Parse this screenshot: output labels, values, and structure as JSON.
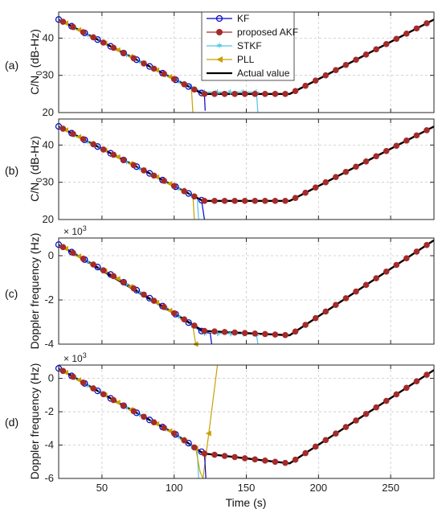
{
  "chart_data": [
    {
      "type": "line",
      "panel_label": "(a)",
      "ylabel": "C/N",
      "ylabel_sub": "0",
      "ylabel_tail": " (dB-Hz)",
      "ylim": [
        20,
        47
      ],
      "yticks": [
        20,
        30,
        40
      ],
      "ytick_labels": [
        "20",
        "30",
        "40"
      ],
      "xlim": [
        20,
        280
      ],
      "grid": true,
      "legend": {
        "position": "top-center",
        "entries": [
          {
            "name": "KF",
            "color": "#0000cc",
            "marker": "circle-open"
          },
          {
            "name": "proposed AKF",
            "color": "#a52a2a",
            "marker": "circle-filled"
          },
          {
            "name": "STKF",
            "color": "#4fc3e8",
            "marker": "star"
          },
          {
            "name": "PLL",
            "color": "#c9a000",
            "marker": "triangle-left"
          },
          {
            "name": "Actual value",
            "color": "#000000",
            "marker": "none"
          }
        ]
      },
      "series": [
        {
          "name": "Actual value",
          "x": [
            20,
            120,
            180,
            280
          ],
          "y": [
            45,
            25,
            25,
            45
          ]
        },
        {
          "name": "KF",
          "x": [
            20,
            50,
            80,
            105,
            118,
            121,
            121.5
          ],
          "y": [
            45,
            39,
            33,
            28,
            25.4,
            25,
            20.5
          ]
        },
        {
          "name": "proposed AKF",
          "x": [
            20,
            60,
            100,
            120,
            150,
            180,
            230,
            280
          ],
          "y": [
            45,
            37,
            29,
            25,
            25,
            25,
            35,
            45
          ]
        },
        {
          "name": "STKF",
          "x": [
            20,
            60,
            100,
            120,
            157,
            158
          ],
          "y": [
            45,
            37,
            29,
            25.5,
            25.5,
            20
          ]
        },
        {
          "name": "PLL",
          "x": [
            20,
            60,
            100,
            112,
            113
          ],
          "y": [
            45,
            37,
            29,
            26.5,
            20
          ]
        }
      ]
    },
    {
      "type": "line",
      "panel_label": "(b)",
      "ylabel": "C/N",
      "ylabel_sub": "0",
      "ylabel_tail": " (dB-Hz)",
      "ylim": [
        20,
        47
      ],
      "yticks": [
        20,
        30,
        40
      ],
      "ytick_labels": [
        "20",
        "30",
        "40"
      ],
      "xlim": [
        20,
        280
      ],
      "grid": true,
      "series": [
        {
          "name": "Actual value",
          "x": [
            20,
            120,
            180,
            280
          ],
          "y": [
            45,
            25,
            25,
            45
          ]
        },
        {
          "name": "KF",
          "x": [
            20,
            60,
            100,
            119,
            121
          ],
          "y": [
            45,
            37,
            29,
            25.2,
            20
          ]
        },
        {
          "name": "proposed AKF",
          "x": [
            20,
            60,
            100,
            120,
            150,
            180,
            230,
            280
          ],
          "y": [
            45,
            37,
            29,
            25,
            25,
            25,
            35,
            45
          ]
        },
        {
          "name": "STKF",
          "x": [
            20,
            60,
            100,
            116,
            117
          ],
          "y": [
            45,
            37,
            29,
            25.8,
            20
          ]
        },
        {
          "name": "PLL",
          "x": [
            20,
            60,
            100,
            113,
            114
          ],
          "y": [
            45,
            37,
            29,
            26.5,
            20
          ]
        }
      ]
    },
    {
      "type": "line",
      "panel_label": "(c)",
      "ylabel": "Doppler frequency (Hz)",
      "exponent_base": "× 10",
      "exponent_power": "3",
      "ylim": [
        -4,
        0.8
      ],
      "yticks": [
        -4,
        -2,
        0
      ],
      "ytick_labels": [
        "-4",
        "-2",
        "0"
      ],
      "xlim": [
        20,
        280
      ],
      "grid": true,
      "series": [
        {
          "name": "Actual value",
          "x": [
            20,
            120,
            180,
            280
          ],
          "y": [
            0.5,
            -3.4,
            -3.6,
            0.7
          ]
        },
        {
          "name": "KF",
          "x": [
            20,
            60,
            100,
            120,
            125,
            126
          ],
          "y": [
            0.5,
            -1.0,
            -2.6,
            -3.45,
            -3.5,
            -4
          ]
        },
        {
          "name": "proposed AKF",
          "x": [
            20,
            60,
            100,
            120,
            150,
            180,
            230,
            280
          ],
          "y": [
            0.5,
            -1.0,
            -2.6,
            -3.4,
            -3.5,
            -3.6,
            -1.45,
            0.7
          ]
        },
        {
          "name": "STKF",
          "x": [
            20,
            60,
            100,
            120,
            157,
            158
          ],
          "y": [
            0.5,
            -1.0,
            -2.6,
            -3.5,
            -3.55,
            -4
          ]
        },
        {
          "name": "PLL",
          "x": [
            20,
            60,
            100,
            113,
            115
          ],
          "y": [
            0.5,
            -1.0,
            -2.6,
            -3.2,
            -4
          ]
        }
      ]
    },
    {
      "type": "line",
      "panel_label": "(d)",
      "ylabel": "Doppler frequency (Hz)",
      "exponent_base": "× 10",
      "exponent_power": "3",
      "xlabel": "Time (s)",
      "ylim": [
        -6,
        0.8
      ],
      "yticks": [
        -6,
        -4,
        -2,
        0
      ],
      "ytick_labels": [
        "-6",
        "-4",
        "-2",
        "0"
      ],
      "xlim": [
        20,
        280
      ],
      "xticks": [
        50,
        100,
        150,
        200,
        250
      ],
      "xtick_labels": [
        "50",
        "100",
        "150",
        "200",
        "250"
      ],
      "grid": true,
      "series": [
        {
          "name": "Actual value",
          "x": [
            20,
            60,
            100,
            120,
            150,
            180,
            230,
            280
          ],
          "y": [
            0.6,
            -1.4,
            -3.3,
            -4.5,
            -4.8,
            -5.1,
            -2.3,
            0.5
          ]
        },
        {
          "name": "KF",
          "x": [
            20,
            60,
            100,
            118,
            121,
            122
          ],
          "y": [
            0.6,
            -1.4,
            -3.3,
            -4.35,
            -4.5,
            -6
          ]
        },
        {
          "name": "proposed AKF",
          "x": [
            20,
            60,
            100,
            120,
            150,
            180,
            230,
            280
          ],
          "y": [
            0.6,
            -1.4,
            -3.3,
            -4.5,
            -4.8,
            -5.1,
            -2.3,
            0.5
          ]
        },
        {
          "name": "STKF",
          "x": [
            20,
            60,
            100,
            116,
            117
          ],
          "y": [
            0.6,
            -1.4,
            -3.3,
            -4.3,
            -6
          ]
        },
        {
          "name": "PLL",
          "x": [
            20,
            60,
            100,
            115,
            118,
            120,
            124,
            130
          ],
          "y": [
            0.6,
            -1.4,
            -3.3,
            -4.2,
            -5.6,
            -6,
            -3.3,
            0.8
          ]
        }
      ]
    }
  ]
}
